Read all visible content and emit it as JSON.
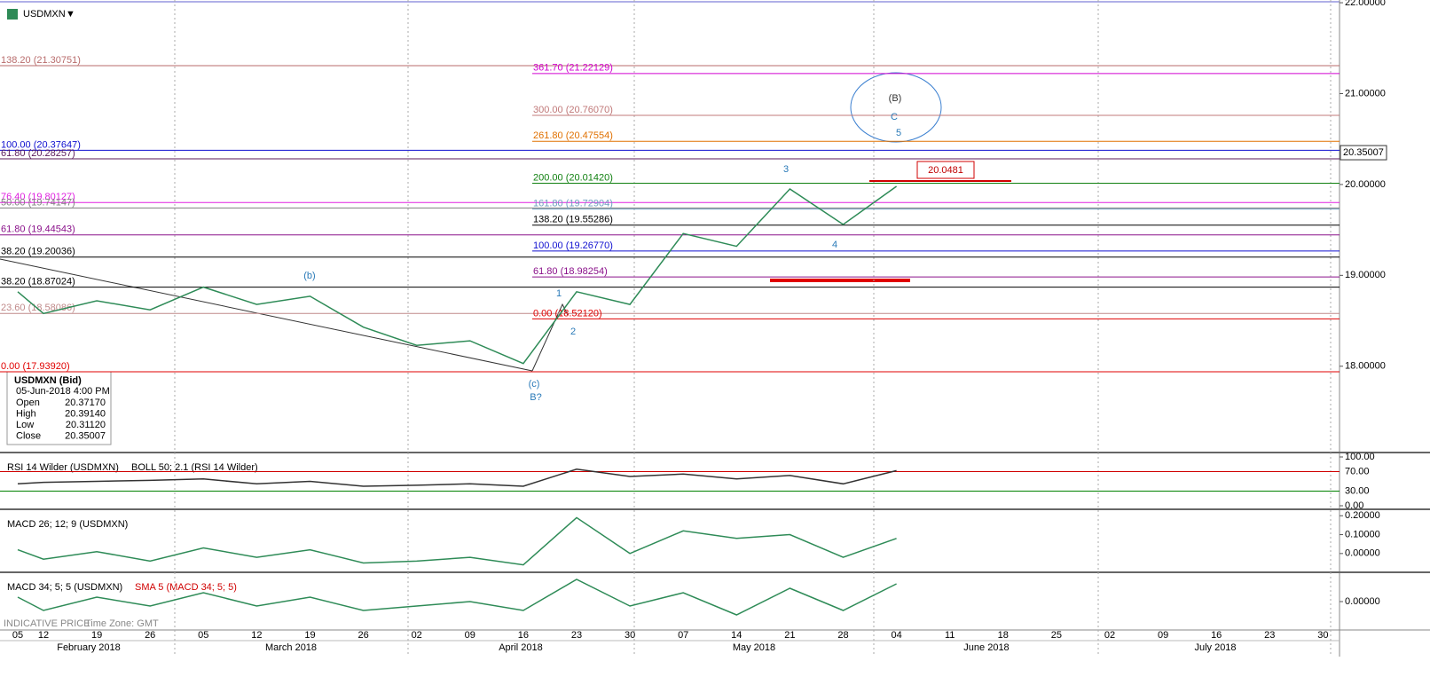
{
  "chart_data": {
    "type": "line",
    "categories": [
      "05",
      "12",
      "19",
      "26",
      "05",
      "12",
      "19",
      "26",
      "02",
      "09",
      "16",
      "23",
      "30",
      "07",
      "14",
      "21",
      "28",
      "04",
      "11",
      "18",
      "25",
      "02",
      "09",
      "16",
      "23",
      "30"
    ],
    "months": [
      "February 2018",
      "March 2018",
      "April 2018",
      "May 2018",
      "June 2018",
      "July 2018"
    ],
    "series": [
      {
        "name": "USDMXN",
        "color": "#2e8b57",
        "values": [
          18.82,
          18.58,
          18.72,
          18.62,
          18.87,
          18.68,
          18.77,
          18.43,
          18.23,
          18.28,
          18.03,
          18.82,
          18.68,
          19.46,
          19.32,
          19.95,
          19.56,
          19.98,
          null,
          null,
          null,
          null,
          null,
          null,
          null,
          null
        ]
      }
    ],
    "ylim": [
      17.07,
      22.03
    ],
    "yticks": [
      {
        "value": 22,
        "label": "22.00000"
      },
      {
        "value": 21,
        "label": "21.00000"
      },
      {
        "value": 20,
        "label": "20.00000"
      },
      {
        "value": 19,
        "label": "19.00000"
      },
      {
        "value": 18,
        "label": "18.00000"
      }
    ],
    "last_price": 20.35007,
    "target_box": 20.0481,
    "left_levels": [
      {
        "text": "138.20 (21.30751)",
        "value": 21.30751,
        "color": "#b86b6b"
      },
      {
        "text": "100.00 (20.37647)",
        "value": 20.37647,
        "color": "#1010d0"
      },
      {
        "text": "61.80 (20.28257)",
        "value": 20.28257,
        "color": "#5a1a5a"
      },
      {
        "text": "76.40 (19.80127)",
        "value": 19.80127,
        "color": "#e020e0"
      },
      {
        "text": "50.00 (19.74147)",
        "value": 19.74147,
        "color": "#808080"
      },
      {
        "text": "61.80 (19.44543)",
        "value": 19.44543,
        "color": "#8a108a"
      },
      {
        "text": "38.20 (19.20036)",
        "value": 19.20036,
        "color": "#000000"
      },
      {
        "text": "38.20 (18.87024)",
        "value": 18.87024,
        "color": "#000000"
      },
      {
        "text": "23.60 (18.58086)",
        "value": 18.58086,
        "color": "#c08a8a"
      },
      {
        "text": "0.00 (17.93920)",
        "value": 17.9392,
        "color": "#e00000"
      }
    ],
    "right_levels": [
      {
        "text": "361.70 (21.22129)",
        "value": 21.22129,
        "color": "#d000d0"
      },
      {
        "text": "300.00 (20.76070)",
        "value": 20.7607,
        "color": "#c07878"
      },
      {
        "text": "261.80 (20.47554)",
        "value": 20.47554,
        "color": "#e07000"
      },
      {
        "text": "200.00 (20.01420)",
        "value": 20.0142,
        "color": "#108010"
      },
      {
        "text": "161.80 (19.72904)",
        "value": 19.72904,
        "color": "#70a0c0"
      },
      {
        "text": "138.20 (19.55286)",
        "value": 19.55286,
        "color": "#000000"
      },
      {
        "text": "100.00 (19.26770)",
        "value": 19.2677,
        "color": "#1010d0"
      },
      {
        "text": "61.80 (18.98254)",
        "value": 18.98254,
        "color": "#8a108a"
      },
      {
        "text": "0.00 (18.52120)",
        "value": 18.5212,
        "color": "#e00000"
      }
    ],
    "annotations": [
      "(b)",
      "(c)",
      "B?",
      "1",
      "2",
      "3",
      "4",
      "5",
      "C",
      "(B)"
    ],
    "info": {
      "title": "USDMXN (Bid)",
      "date": "05-Jun-2018 4:00 PM",
      "rows": [
        [
          "Open",
          "20.37170"
        ],
        [
          "High",
          "20.39140"
        ],
        [
          "Low",
          "20.31120"
        ],
        [
          "Close",
          "20.35007"
        ]
      ]
    },
    "rsi": {
      "title": "RSI 14 Wilder (USDMXN)",
      "overlay": "BOLL 50; 2.1 (RSI 14 Wilder)",
      "color": "#333333",
      "ylim": [
        0,
        100
      ],
      "yticks": [
        {
          "value": 100,
          "label": "100.00"
        },
        {
          "value": 70,
          "label": "70.00",
          "color": "#d00000"
        },
        {
          "value": 30,
          "label": "30.00",
          "color": "#008000"
        },
        {
          "value": 0,
          "label": "0.00"
        }
      ],
      "values": [
        45,
        48,
        50,
        52,
        55,
        45,
        50,
        40,
        42,
        45,
        40,
        75,
        60,
        65,
        55,
        62,
        45,
        72,
        null,
        null,
        null,
        null,
        null,
        null,
        null,
        null
      ]
    },
    "macd": {
      "title": "MACD 26; 12; 9 (USDMXN)",
      "color": "#2e8b57",
      "ylim": [
        -0.09,
        0.22
      ],
      "yticks": [
        {
          "value": 0.2,
          "label": "0.20000"
        },
        {
          "value": 0.1,
          "label": "0.10000"
        },
        {
          "value": 0,
          "label": "0.00000"
        }
      ],
      "values": [
        0.02,
        -0.03,
        0.01,
        -0.04,
        0.03,
        -0.02,
        0.02,
        -0.05,
        -0.04,
        -0.02,
        -0.06,
        0.19,
        0.0,
        0.12,
        0.08,
        0.1,
        -0.02,
        0.08,
        null,
        null,
        null,
        null,
        null,
        null,
        null,
        null
      ]
    },
    "macd2": {
      "title": "MACD 34; 5; 5 (USDMXN)",
      "overlay": "SMA 5 (MACD 34; 5; 5)",
      "color": "#2e8b57",
      "ylim": [
        -0.06,
        0.06
      ],
      "yticks": [
        {
          "value": 0,
          "label": "0.00000"
        }
      ],
      "values": [
        0.01,
        -0.02,
        0.01,
        -0.01,
        0.02,
        -0.01,
        0.01,
        -0.02,
        -0.01,
        0.0,
        -0.02,
        0.05,
        -0.01,
        0.02,
        -0.03,
        0.03,
        -0.02,
        0.04,
        null,
        null,
        null,
        null,
        null,
        null,
        null,
        null
      ]
    },
    "footer": [
      "INDICATIVE PRICE",
      "Time Zone: GMT"
    ]
  }
}
